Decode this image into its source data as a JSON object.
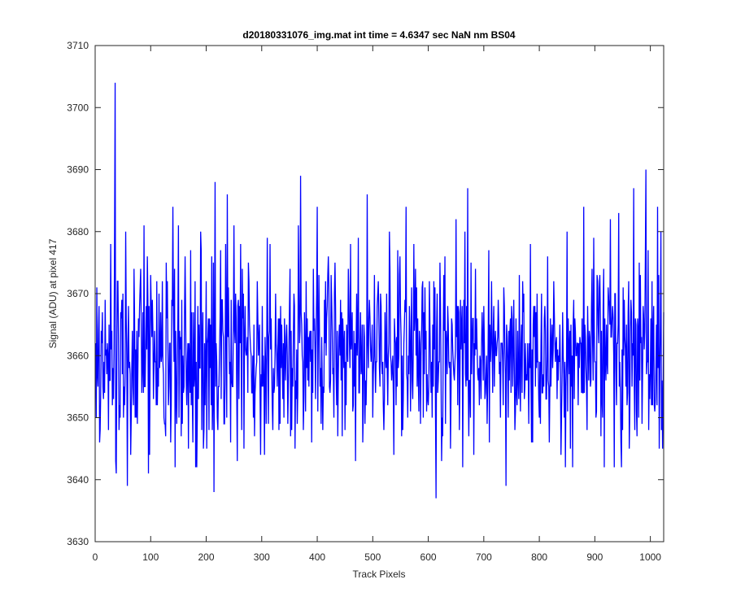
{
  "chart_data": {
    "type": "line",
    "title": "d20180331076_img.mat int time = 4.6347 sec  NaN nm BS04",
    "xlabel": "Track Pixels",
    "ylabel": "Signal (ADU) at pixel 417",
    "xlim": [
      0,
      1024
    ],
    "ylim": [
      3630,
      3710
    ],
    "xticks": [
      0,
      100,
      200,
      300,
      400,
      500,
      600,
      700,
      800,
      900,
      1000
    ],
    "yticks": [
      3630,
      3640,
      3650,
      3660,
      3670,
      3680,
      3690,
      3700,
      3710
    ],
    "grid": false,
    "legend": "none",
    "line_color": "#0000ff",
    "series": [
      {
        "x_start": 1,
        "x_end": 1024,
        "noise_mean": 3660,
        "noise_std": 7,
        "values_shown": [
          [
            1,
            3662
          ],
          [
            2,
            3650
          ],
          [
            3,
            3671
          ],
          [
            5,
            3655
          ],
          [
            7,
            3668
          ],
          [
            9,
            3648
          ],
          [
            12,
            3662
          ],
          [
            15,
            3653
          ],
          [
            18,
            3669
          ],
          [
            21,
            3657
          ],
          [
            25,
            3665
          ],
          [
            28,
            3678
          ],
          [
            31,
            3652
          ],
          [
            35,
            3680
          ],
          [
            36,
            3704
          ],
          [
            38,
            3641
          ],
          [
            40,
            3672
          ],
          [
            43,
            3648
          ],
          [
            47,
            3666
          ],
          [
            51,
            3650
          ],
          [
            55,
            3680
          ],
          [
            58,
            3639
          ],
          [
            60,
            3668
          ],
          [
            64,
            3644
          ],
          [
            70,
            3674
          ],
          [
            74,
            3650
          ],
          [
            80,
            3668
          ],
          [
            84,
            3654
          ],
          [
            88,
            3681
          ],
          [
            90,
            3655
          ],
          [
            96,
            3641
          ],
          [
            101,
            3668
          ],
          [
            110,
            3652
          ],
          [
            115,
            3670
          ],
          [
            120,
            3660
          ],
          [
            125,
            3649
          ],
          [
            130,
            3672
          ],
          [
            136,
            3646
          ],
          [
            140,
            3684
          ],
          [
            144,
            3642
          ],
          [
            150,
            3681
          ],
          [
            155,
            3647
          ],
          [
            162,
            3676
          ],
          [
            168,
            3645
          ],
          [
            172,
            3677
          ],
          [
            176,
            3646
          ],
          [
            180,
            3672
          ],
          [
            184,
            3650
          ],
          [
            190,
            3680
          ],
          [
            195,
            3645
          ],
          [
            200,
            3672
          ],
          [
            205,
            3648
          ],
          [
            210,
            3676
          ],
          [
            214,
            3638
          ],
          [
            216,
            3688
          ],
          [
            220,
            3650
          ],
          [
            226,
            3677
          ],
          [
            232,
            3649
          ],
          [
            238,
            3686
          ],
          [
            244,
            3646
          ],
          [
            250,
            3681
          ],
          [
            256,
            3643
          ],
          [
            262,
            3678
          ],
          [
            268,
            3645
          ],
          [
            276,
            3675
          ],
          [
            285,
            3650
          ],
          [
            292,
            3672
          ],
          [
            300,
            3655
          ],
          [
            310,
            3679
          ],
          [
            320,
            3648
          ],
          [
            330,
            3666
          ],
          [
            340,
            3650
          ],
          [
            350,
            3668
          ],
          [
            360,
            3645
          ],
          [
            366,
            3681
          ],
          [
            370,
            3689
          ],
          [
            375,
            3648
          ],
          [
            380,
            3672
          ],
          [
            390,
            3646
          ],
          [
            400,
            3684
          ],
          [
            410,
            3648
          ],
          [
            420,
            3676
          ],
          [
            430,
            3650
          ],
          [
            440,
            3665
          ],
          [
            450,
            3648
          ],
          [
            460,
            3678
          ],
          [
            469,
            3643
          ],
          [
            474,
            3679
          ],
          [
            482,
            3646
          ],
          [
            490,
            3686
          ],
          [
            500,
            3650
          ],
          [
            510,
            3672
          ],
          [
            520,
            3648
          ],
          [
            530,
            3680
          ],
          [
            538,
            3644
          ],
          [
            545,
            3677
          ],
          [
            552,
            3647
          ],
          [
            560,
            3684
          ],
          [
            568,
            3651
          ],
          [
            574,
            3678
          ],
          [
            580,
            3655
          ],
          [
            590,
            3672
          ],
          [
            600,
            3652
          ],
          [
            608,
            3665
          ],
          [
            614,
            3637
          ],
          [
            620,
            3659
          ],
          [
            624,
            3643
          ],
          [
            630,
            3676
          ],
          [
            640,
            3645
          ],
          [
            650,
            3682
          ],
          [
            656,
            3648
          ],
          [
            666,
            3680
          ],
          [
            671,
            3687
          ],
          [
            676,
            3650
          ],
          [
            685,
            3674
          ],
          [
            692,
            3652
          ],
          [
            700,
            3668
          ],
          [
            710,
            3646
          ],
          [
            720,
            3662
          ],
          [
            730,
            3650
          ],
          [
            740,
            3639
          ],
          [
            748,
            3666
          ],
          [
            760,
            3652
          ],
          [
            770,
            3672
          ],
          [
            780,
            3658
          ],
          [
            790,
            3668
          ],
          [
            800,
            3650
          ],
          [
            810,
            3668
          ],
          [
            818,
            3646
          ],
          [
            826,
            3672
          ],
          [
            840,
            3650
          ],
          [
            850,
            3680
          ],
          [
            856,
            3645
          ],
          [
            864,
            3666
          ],
          [
            870,
            3652
          ],
          [
            880,
            3684
          ],
          [
            886,
            3648
          ],
          [
            898,
            3679
          ],
          [
            903,
            3651
          ],
          [
            910,
            3666
          ],
          [
            920,
            3656
          ],
          [
            928,
            3682
          ],
          [
            935,
            3642
          ],
          [
            943,
            3683
          ],
          [
            950,
            3648
          ],
          [
            960,
            3667
          ],
          [
            970,
            3687
          ],
          [
            975,
            3651
          ],
          [
            980,
            3675
          ],
          [
            985,
            3649
          ],
          [
            992,
            3690
          ],
          [
            997,
            3648
          ],
          [
            1003,
            3672
          ],
          [
            1008,
            3651
          ],
          [
            1013,
            3684
          ],
          [
            1016,
            3645
          ],
          [
            1019,
            3680
          ],
          [
            1021,
            3656
          ],
          [
            1024,
            3667
          ]
        ]
      }
    ]
  }
}
